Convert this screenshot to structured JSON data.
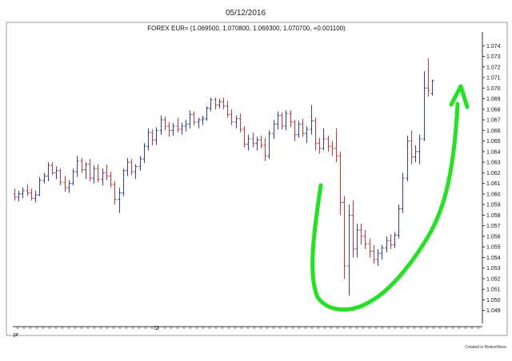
{
  "header": {
    "date": "05/12/2016"
  },
  "footer": {
    "credit": "Created in MotiveWave"
  },
  "chart_data": {
    "type": "ohlc",
    "title": "FOREX EUR= (1.069500, 1.070800, 1.069300, 1.070700, +0.001100)",
    "xlabel": "",
    "ylabel": "",
    "ylim": [
      1.048,
      1.075
    ],
    "y_ticks": [
      "1.074",
      "1.073",
      "1.072",
      "1.071",
      "1.070",
      "1.069",
      "1.068",
      "1.067",
      "1.066",
      "1.065",
      "1.064",
      "1.063",
      "1.062",
      "1.061",
      "1.060",
      "1.059",
      "1.058",
      "1.057",
      "1.056",
      "1.055",
      "1.054",
      "1.053",
      "1.052",
      "1.051",
      "1.050",
      "1.049"
    ],
    "x_labels": [
      "pr",
      "l2"
    ],
    "grid": false,
    "colors": {
      "up": "#2b3bd4",
      "down": "#e03131",
      "annotation": "#1ee61e"
    },
    "annotation": "hand-drawn green swoosh arrow pointing up",
    "bars": [
      [
        1.06,
        1.0605,
        1.0594,
        1.0597
      ],
      [
        1.0597,
        1.0603,
        1.0593,
        1.06
      ],
      [
        1.06,
        1.0606,
        1.0596,
        1.0603
      ],
      [
        1.0603,
        1.0609,
        1.0598,
        1.0601
      ],
      [
        1.0601,
        1.0605,
        1.0594,
        1.0596
      ],
      [
        1.0596,
        1.0603,
        1.0592,
        1.0599
      ],
      [
        1.0599,
        1.0616,
        1.0598,
        1.0613
      ],
      [
        1.0613,
        1.062,
        1.061,
        1.0617
      ],
      [
        1.0617,
        1.063,
        1.0612,
        1.0627
      ],
      [
        1.0627,
        1.063,
        1.0618,
        1.062
      ],
      [
        1.062,
        1.0626,
        1.0614,
        1.0622
      ],
      [
        1.0622,
        1.0624,
        1.0608,
        1.0611
      ],
      [
        1.0611,
        1.0617,
        1.0602,
        1.0606
      ],
      [
        1.0606,
        1.0613,
        1.0601,
        1.061
      ],
      [
        1.061,
        1.0624,
        1.0608,
        1.0621
      ],
      [
        1.0621,
        1.0636,
        1.0616,
        1.0631
      ],
      [
        1.0631,
        1.0634,
        1.062,
        1.0623
      ],
      [
        1.0623,
        1.063,
        1.0614,
        1.0628
      ],
      [
        1.0628,
        1.0633,
        1.0612,
        1.0615
      ],
      [
        1.0615,
        1.0627,
        1.061,
        1.0624
      ],
      [
        1.0624,
        1.0628,
        1.0611,
        1.0614
      ],
      [
        1.0614,
        1.0624,
        1.0608,
        1.062
      ],
      [
        1.062,
        1.0628,
        1.0613,
        1.0617
      ],
      [
        1.0617,
        1.0621,
        1.0606,
        1.0609
      ],
      [
        1.0609,
        1.0612,
        1.059,
        1.0595
      ],
      [
        1.0595,
        1.0606,
        1.0582,
        1.0601
      ],
      [
        1.0601,
        1.0624,
        1.0598,
        1.0622
      ],
      [
        1.0622,
        1.0634,
        1.0617,
        1.063
      ],
      [
        1.063,
        1.0633,
        1.0618,
        1.0621
      ],
      [
        1.0621,
        1.0628,
        1.0614,
        1.0626
      ],
      [
        1.0626,
        1.0636,
        1.0622,
        1.0633
      ],
      [
        1.0633,
        1.0648,
        1.0629,
        1.0645
      ],
      [
        1.0645,
        1.0662,
        1.0641,
        1.0658
      ],
      [
        1.0658,
        1.0661,
        1.0646,
        1.0651
      ],
      [
        1.0651,
        1.0663,
        1.0646,
        1.066
      ],
      [
        1.066,
        1.0674,
        1.0656,
        1.067
      ],
      [
        1.067,
        1.0673,
        1.066,
        1.0664
      ],
      [
        1.0664,
        1.0668,
        1.0654,
        1.066
      ],
      [
        1.066,
        1.0667,
        1.0655,
        1.0664
      ],
      [
        1.0664,
        1.0672,
        1.0658,
        1.0661
      ],
      [
        1.0661,
        1.0667,
        1.0656,
        1.0664
      ],
      [
        1.0664,
        1.067,
        1.0659,
        1.0666
      ],
      [
        1.0666,
        1.0679,
        1.0662,
        1.0675
      ],
      [
        1.0675,
        1.0678,
        1.0665,
        1.0668
      ],
      [
        1.0668,
        1.0672,
        1.0662,
        1.067
      ],
      [
        1.067,
        1.0674,
        1.0665,
        1.0671
      ],
      [
        1.0671,
        1.0683,
        1.0669,
        1.0681
      ],
      [
        1.0681,
        1.0691,
        1.0678,
        1.0689
      ],
      [
        1.0689,
        1.0691,
        1.068,
        1.0684
      ],
      [
        1.0684,
        1.069,
        1.0681,
        1.0687
      ],
      [
        1.0687,
        1.0691,
        1.068,
        1.0683
      ],
      [
        1.0683,
        1.0688,
        1.0672,
        1.0675
      ],
      [
        1.0675,
        1.068,
        1.0665,
        1.0668
      ],
      [
        1.0668,
        1.0674,
        1.0662,
        1.0671
      ],
      [
        1.0671,
        1.0676,
        1.0658,
        1.0661
      ],
      [
        1.0661,
        1.0664,
        1.0644,
        1.0647
      ],
      [
        1.0647,
        1.0656,
        1.0641,
        1.0652
      ],
      [
        1.0652,
        1.0658,
        1.0644,
        1.0648
      ],
      [
        1.0648,
        1.0654,
        1.0641,
        1.0651
      ],
      [
        1.0651,
        1.0655,
        1.0643,
        1.0646
      ],
      [
        1.0646,
        1.0653,
        1.0631,
        1.0636
      ],
      [
        1.0636,
        1.066,
        1.0633,
        1.0657
      ],
      [
        1.0657,
        1.067,
        1.0652,
        1.0666
      ],
      [
        1.0666,
        1.0678,
        1.0661,
        1.0674
      ],
      [
        1.0674,
        1.0677,
        1.0661,
        1.0664
      ],
      [
        1.0664,
        1.0679,
        1.066,
        1.0676
      ],
      [
        1.0676,
        1.0679,
        1.0663,
        1.0668
      ],
      [
        1.0668,
        1.067,
        1.065,
        1.0656
      ],
      [
        1.0656,
        1.0669,
        1.0653,
        1.0666
      ],
      [
        1.0666,
        1.0671,
        1.0654,
        1.0657
      ],
      [
        1.0657,
        1.0664,
        1.0648,
        1.0661
      ],
      [
        1.0661,
        1.0684,
        1.0656,
        1.0669
      ],
      [
        1.0669,
        1.0672,
        1.0641,
        1.0648
      ],
      [
        1.0648,
        1.0653,
        1.0638,
        1.0643
      ],
      [
        1.0643,
        1.0662,
        1.0641,
        1.0652
      ],
      [
        1.0652,
        1.0655,
        1.064,
        1.0645
      ],
      [
        1.0645,
        1.065,
        1.0636,
        1.0643
      ],
      [
        1.0643,
        1.0662,
        1.063,
        1.0636
      ],
      [
        1.0636,
        1.064,
        1.058,
        1.0592
      ],
      [
        1.0592,
        1.0598,
        1.052,
        1.0532
      ],
      [
        1.0532,
        1.059,
        1.0504,
        1.058
      ],
      [
        1.058,
        1.0594,
        1.054,
        1.0548
      ],
      [
        1.0548,
        1.0572,
        1.054,
        1.0566
      ],
      [
        1.0566,
        1.0572,
        1.0552,
        1.056
      ],
      [
        1.056,
        1.0566,
        1.0548,
        1.0553
      ],
      [
        1.0553,
        1.0558,
        1.054,
        1.0546
      ],
      [
        1.0546,
        1.0552,
        1.0534,
        1.0538
      ],
      [
        1.0538,
        1.0548,
        1.0532,
        1.0544
      ],
      [
        1.0544,
        1.0552,
        1.0538,
        1.0549
      ],
      [
        1.0549,
        1.056,
        1.0545,
        1.0556
      ],
      [
        1.0556,
        1.0562,
        1.0548,
        1.0552
      ],
      [
        1.0552,
        1.0564,
        1.0549,
        1.0561
      ],
      [
        1.0561,
        1.059,
        1.0558,
        1.0586
      ],
      [
        1.0586,
        1.062,
        1.0582,
        1.0615
      ],
      [
        1.0615,
        1.0655,
        1.0612,
        1.065
      ],
      [
        1.065,
        1.066,
        1.0628,
        1.0635
      ],
      [
        1.0635,
        1.0646,
        1.063,
        1.064
      ],
      [
        1.064,
        1.0656,
        1.0628,
        1.0652
      ],
      [
        1.0652,
        1.0716,
        1.065,
        1.07
      ],
      [
        1.07,
        1.0728,
        1.0692,
        1.0698
      ],
      [
        1.0695,
        1.0708,
        1.0693,
        1.0707
      ]
    ]
  }
}
